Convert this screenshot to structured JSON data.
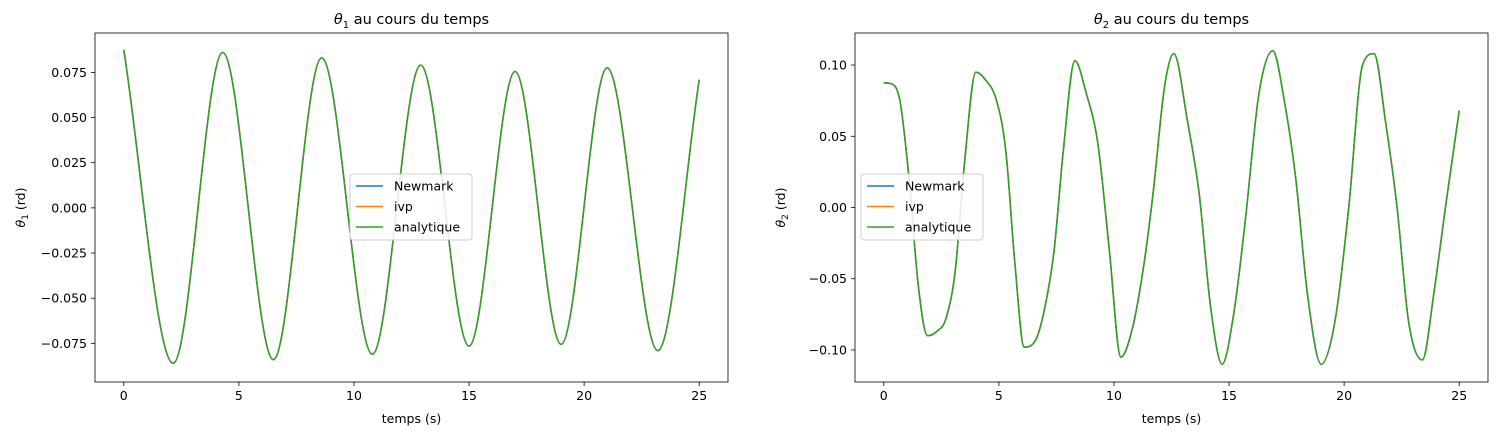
{
  "chart_data": [
    {
      "type": "line",
      "title_base": "θ",
      "title_sub": "1",
      "title_rest": " au cours du temps",
      "xlabel": "temps (s)",
      "ylabel_base": "θ",
      "ylabel_sub": "1",
      "ylabel_rest": " (rd)",
      "xlim": [
        -1.25,
        26.25
      ],
      "ylim": [
        -0.0964,
        0.0968
      ],
      "xticks": [
        0,
        5,
        10,
        15,
        20,
        25
      ],
      "xtick_labels": [
        "0",
        "5",
        "10",
        "15",
        "20",
        "25"
      ],
      "yticks": [
        -0.075,
        -0.05,
        -0.025,
        0.0,
        0.025,
        0.05,
        0.075
      ],
      "ytick_labels": [
        "−0.075",
        "−0.050",
        "−0.025",
        "0.000",
        "0.025",
        "0.050",
        "0.075"
      ],
      "legend": [
        "Newmark",
        "ivp",
        "analytique"
      ],
      "legend_position": "center",
      "x": [
        0,
        2.15,
        4.3,
        6.5,
        8.6,
        10.8,
        12.9,
        15.0,
        17.0,
        19.0,
        21.0,
        23.2,
        25.0
      ],
      "series": [
        {
          "name": "Newmark",
          "color": "#1f77b4",
          "values": [
            0.0875,
            -0.086,
            0.086,
            -0.084,
            0.083,
            -0.081,
            0.079,
            -0.0765,
            0.0755,
            -0.0755,
            0.0775,
            -0.079,
            0.071
          ]
        },
        {
          "name": "ivp",
          "color": "#ff7f0e",
          "values": [
            0.0875,
            -0.086,
            0.086,
            -0.084,
            0.083,
            -0.081,
            0.079,
            -0.0765,
            0.0755,
            -0.0755,
            0.0775,
            -0.079,
            0.071
          ]
        },
        {
          "name": "analytique",
          "color": "#2ca02c",
          "values": [
            0.0875,
            -0.086,
            0.086,
            -0.084,
            0.083,
            -0.081,
            0.079,
            -0.0765,
            0.0755,
            -0.0755,
            0.0775,
            -0.079,
            0.071
          ]
        }
      ]
    },
    {
      "type": "line",
      "title_base": "θ",
      "title_sub": "2",
      "title_rest": " au cours du temps",
      "xlabel": "temps (s)",
      "ylabel_base": "θ",
      "ylabel_sub": "2",
      "ylabel_rest": " (rd)",
      "xlim": [
        -1.25,
        26.25
      ],
      "ylim": [
        -0.1225,
        0.1225
      ],
      "xticks": [
        0,
        5,
        10,
        15,
        20,
        25
      ],
      "xtick_labels": [
        "0",
        "5",
        "10",
        "15",
        "20",
        "25"
      ],
      "yticks": [
        -0.1,
        -0.05,
        0.0,
        0.05,
        0.1
      ],
      "ytick_labels": [
        "−0.10",
        "−0.05",
        "0.00",
        "0.05",
        "0.10"
      ],
      "legend": [
        "Newmark",
        "ivp",
        "analytique"
      ],
      "legend_position": "center-left",
      "x": [
        0,
        0.3,
        0.7,
        1.1,
        1.5,
        1.9,
        2.3,
        2.7,
        3.1,
        3.5,
        4.0,
        4.4,
        4.9,
        5.3,
        5.7,
        6.1,
        6.6,
        7.0,
        7.4,
        7.8,
        8.3,
        8.8,
        9.3,
        9.8,
        10.3,
        10.8,
        11.3,
        11.7,
        12.2,
        12.6,
        13.2,
        13.7,
        14.2,
        14.7,
        15.2,
        15.7,
        16.3,
        16.9,
        17.4,
        17.9,
        18.4,
        19.0,
        19.6,
        20.2,
        20.8,
        21.3,
        21.8,
        22.3,
        22.8,
        23.4,
        23.9,
        24.4,
        25.0
      ],
      "series": [
        {
          "name": "Newmark",
          "color": "#1f77b4",
          "values": [
            0.0875,
            0.087,
            0.075,
            0.02,
            -0.055,
            -0.09,
            -0.087,
            -0.078,
            -0.045,
            0.03,
            0.095,
            0.09,
            0.075,
            0.04,
            -0.04,
            -0.098,
            -0.093,
            -0.07,
            -0.03,
            0.04,
            0.103,
            0.08,
            0.045,
            -0.03,
            -0.105,
            -0.085,
            -0.04,
            0.01,
            0.085,
            0.108,
            0.06,
            0.01,
            -0.07,
            -0.11,
            -0.075,
            -0.01,
            0.08,
            0.11,
            0.075,
            0.02,
            -0.06,
            -0.11,
            -0.08,
            0.0,
            0.1,
            0.108,
            0.06,
            0.0,
            -0.08,
            -0.107,
            -0.06,
            0.0,
            0.068
          ]
        },
        {
          "name": "ivp",
          "color": "#ff7f0e",
          "values": [
            0.0875,
            0.087,
            0.075,
            0.02,
            -0.055,
            -0.09,
            -0.087,
            -0.078,
            -0.045,
            0.03,
            0.095,
            0.09,
            0.075,
            0.04,
            -0.04,
            -0.098,
            -0.093,
            -0.07,
            -0.03,
            0.04,
            0.103,
            0.08,
            0.045,
            -0.03,
            -0.105,
            -0.085,
            -0.04,
            0.01,
            0.085,
            0.108,
            0.06,
            0.01,
            -0.07,
            -0.11,
            -0.075,
            -0.01,
            0.08,
            0.11,
            0.075,
            0.02,
            -0.06,
            -0.11,
            -0.08,
            0.0,
            0.1,
            0.108,
            0.06,
            0.0,
            -0.08,
            -0.107,
            -0.06,
            0.0,
            0.068
          ]
        },
        {
          "name": "analytique",
          "color": "#2ca02c",
          "values": [
            0.0875,
            0.087,
            0.075,
            0.02,
            -0.055,
            -0.09,
            -0.087,
            -0.078,
            -0.045,
            0.03,
            0.095,
            0.09,
            0.075,
            0.04,
            -0.04,
            -0.098,
            -0.093,
            -0.07,
            -0.03,
            0.04,
            0.103,
            0.08,
            0.045,
            -0.03,
            -0.105,
            -0.085,
            -0.04,
            0.01,
            0.085,
            0.108,
            0.06,
            0.01,
            -0.07,
            -0.11,
            -0.075,
            -0.01,
            0.08,
            0.11,
            0.075,
            0.02,
            -0.06,
            -0.11,
            -0.08,
            0.0,
            0.1,
            0.108,
            0.06,
            0.0,
            -0.08,
            -0.107,
            -0.06,
            0.0,
            0.068
          ]
        }
      ]
    }
  ]
}
